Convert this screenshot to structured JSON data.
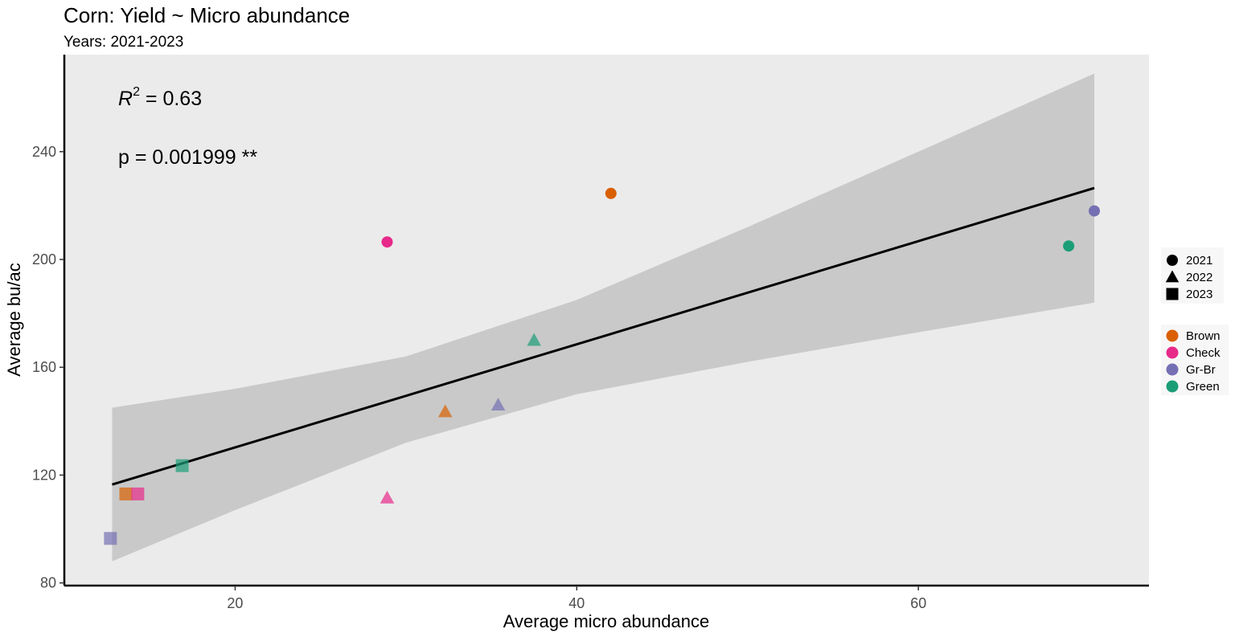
{
  "chart_data": {
    "type": "scatter",
    "title": "Corn: Yield ~ Micro abundance",
    "subtitle": "Years: 2021-2023",
    "xlabel": "Average micro abundance",
    "ylabel": "Average bu/ac",
    "xlim": [
      10,
      73.5
    ],
    "ylim": [
      79,
      276
    ],
    "x_ticks": [
      20,
      40,
      60
    ],
    "y_ticks": [
      80,
      120,
      160,
      200,
      240
    ],
    "grid": false,
    "legend_position": "right",
    "annotations": {
      "r2_prefix": "R",
      "r2_sup": "2",
      "r2_value": " = 0.63",
      "p_text": "p = 0.001999 **"
    },
    "legend_shape": {
      "items": [
        {
          "label": "2021",
          "shape": "circle"
        },
        {
          "label": "2022",
          "shape": "triangle"
        },
        {
          "label": "2023",
          "shape": "square"
        }
      ]
    },
    "legend_color": {
      "items": [
        {
          "label": "Brown",
          "color": "#d95f02"
        },
        {
          "label": "Check",
          "color": "#e7298a"
        },
        {
          "label": "Gr-Br",
          "color": "#7570b3"
        },
        {
          "label": "Green",
          "color": "#1b9e77"
        }
      ]
    },
    "regression": {
      "x": [
        12.8,
        70.3
      ],
      "y": [
        116.5,
        226.5
      ]
    },
    "confidence_band": {
      "x": [
        12.8,
        20,
        30,
        40,
        50,
        60,
        70.3
      ],
      "lower": [
        88,
        107,
        132,
        150,
        162,
        173,
        184
      ],
      "upper": [
        145,
        152,
        164,
        185,
        212,
        240,
        269
      ]
    },
    "points": [
      {
        "treatment": "Brown",
        "year": "2021",
        "x": 42.0,
        "y": 224.5
      },
      {
        "treatment": "Check",
        "year": "2021",
        "x": 28.9,
        "y": 206.5
      },
      {
        "treatment": "Gr-Br",
        "year": "2021",
        "x": 70.3,
        "y": 218.0
      },
      {
        "treatment": "Green",
        "year": "2021",
        "x": 68.8,
        "y": 205.0
      },
      {
        "treatment": "Green",
        "year": "2022",
        "x": 37.5,
        "y": 170.0
      },
      {
        "treatment": "Gr-Br",
        "year": "2022",
        "x": 35.4,
        "y": 146.0
      },
      {
        "treatment": "Brown",
        "year": "2022",
        "x": 32.3,
        "y": 143.5
      },
      {
        "treatment": "Check",
        "year": "2022",
        "x": 28.9,
        "y": 111.5
      },
      {
        "treatment": "Green",
        "year": "2023",
        "x": 16.9,
        "y": 123.5
      },
      {
        "treatment": "Brown",
        "year": "2023",
        "x": 13.6,
        "y": 113.0
      },
      {
        "treatment": "Check",
        "year": "2023",
        "x": 14.3,
        "y": 113.0
      },
      {
        "treatment": "Gr-Br",
        "year": "2023",
        "x": 12.7,
        "y": 96.5
      }
    ]
  }
}
